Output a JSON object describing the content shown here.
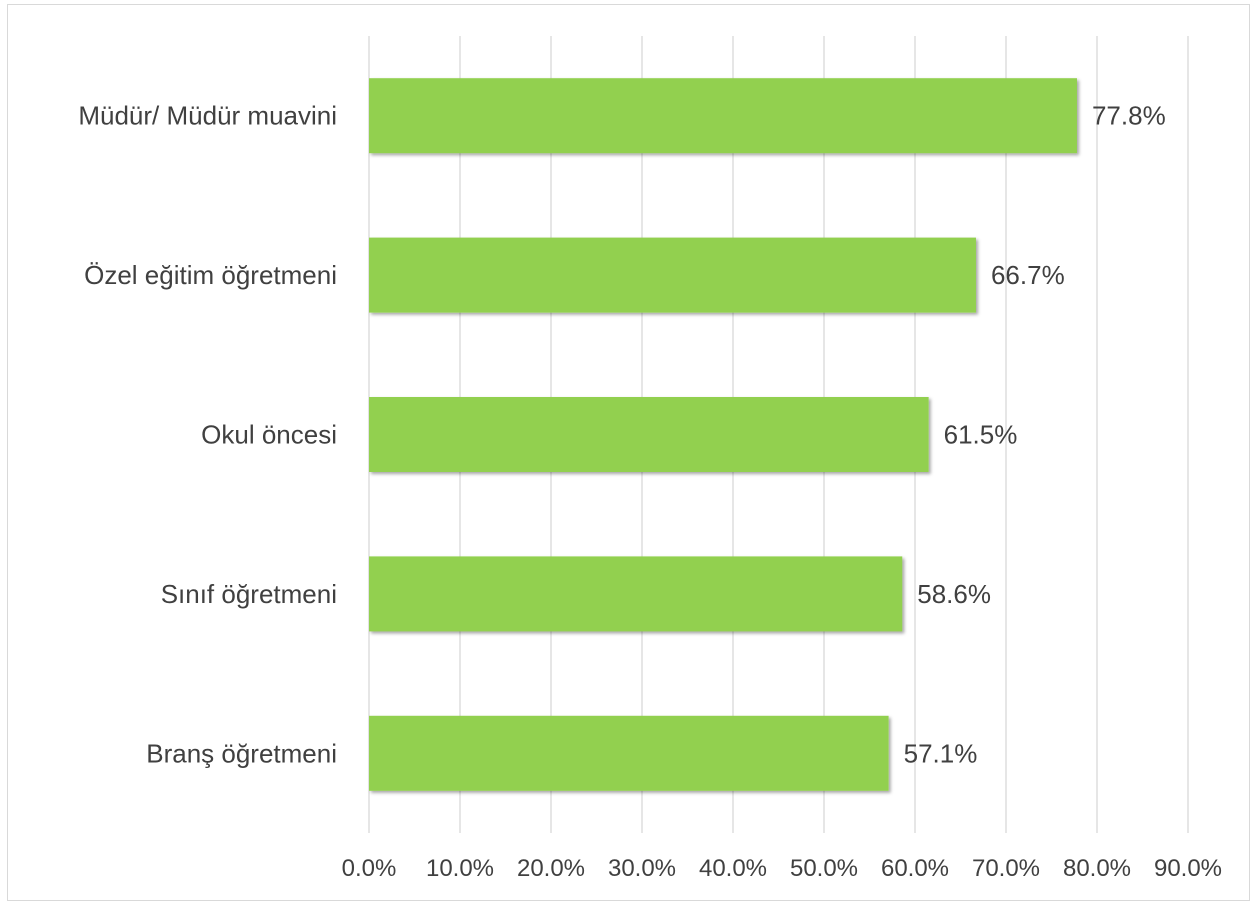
{
  "chart_data": {
    "type": "bar",
    "orientation": "horizontal",
    "categories": [
      "Müdür/ Müdür muavini",
      "Özel eğitim öğretmeni",
      "Okul öncesi",
      "Sınıf öğretmeni",
      "Branş öğretmeni"
    ],
    "values": [
      77.8,
      66.7,
      61.5,
      58.6,
      57.1
    ],
    "data_labels": [
      "77.8%",
      "66.7%",
      "61.5%",
      "58.6%",
      "57.1%"
    ],
    "x_ticks": [
      "0.0%",
      "10.0%",
      "20.0%",
      "30.0%",
      "40.0%",
      "50.0%",
      "60.0%",
      "70.0%",
      "80.0%",
      "90.0%"
    ],
    "xlim": [
      0,
      90
    ],
    "grid": "vertical",
    "legend": "none",
    "bar_color": "#92d050",
    "title": "",
    "xlabel": "",
    "ylabel": ""
  }
}
